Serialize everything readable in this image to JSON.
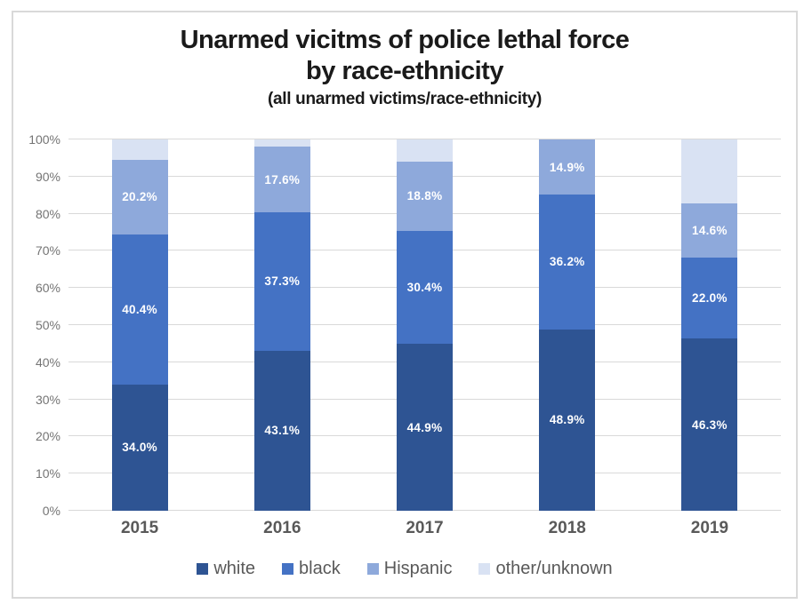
{
  "chart_data": {
    "type": "bar",
    "stacked": true,
    "percent_stacked": true,
    "title": "Unarmed vicitms of police lethal force",
    "title_line2": "by race-ethnicity",
    "subtitle": "(all unarmed victims/race-ethnicity)",
    "categories": [
      "2015",
      "2016",
      "2017",
      "2018",
      "2019"
    ],
    "series": [
      {
        "name": "white",
        "color": "#2E5493",
        "values": [
          34.0,
          43.1,
          44.9,
          48.9,
          46.3
        ],
        "data_labels": [
          "34.0%",
          "43.1%",
          "44.9%",
          "48.9%",
          "46.3%"
        ]
      },
      {
        "name": "black",
        "color": "#4472C4",
        "values": [
          40.4,
          37.3,
          30.4,
          36.2,
          22.0
        ],
        "data_labels": [
          "40.4%",
          "37.3%",
          "30.4%",
          "36.2%",
          "22.0%"
        ]
      },
      {
        "name": "Hispanic",
        "color": "#8EA9DB",
        "values": [
          20.2,
          17.6,
          18.8,
          14.9,
          14.6
        ],
        "data_labels": [
          "20.2%",
          "17.6%",
          "18.8%",
          "14.9%",
          "14.6%"
        ]
      },
      {
        "name": "other/unknown",
        "color": "#D9E2F3",
        "values": [
          5.4,
          2.0,
          5.9,
          0.0,
          17.1
        ],
        "data_labels": [
          "",
          "",
          "",
          "",
          ""
        ]
      }
    ],
    "ylim": [
      0,
      100
    ],
    "yticks": [
      "0%",
      "10%",
      "20%",
      "30%",
      "40%",
      "50%",
      "60%",
      "70%",
      "80%",
      "90%",
      "100%"
    ],
    "xlabel": "",
    "ylabel": "",
    "grid": true,
    "legend_position": "bottom",
    "data_label_color": "#FFFFFF",
    "gridline_color": "#D9D9D9",
    "axis_text_color": "#747474",
    "category_text_color": "#595959"
  }
}
